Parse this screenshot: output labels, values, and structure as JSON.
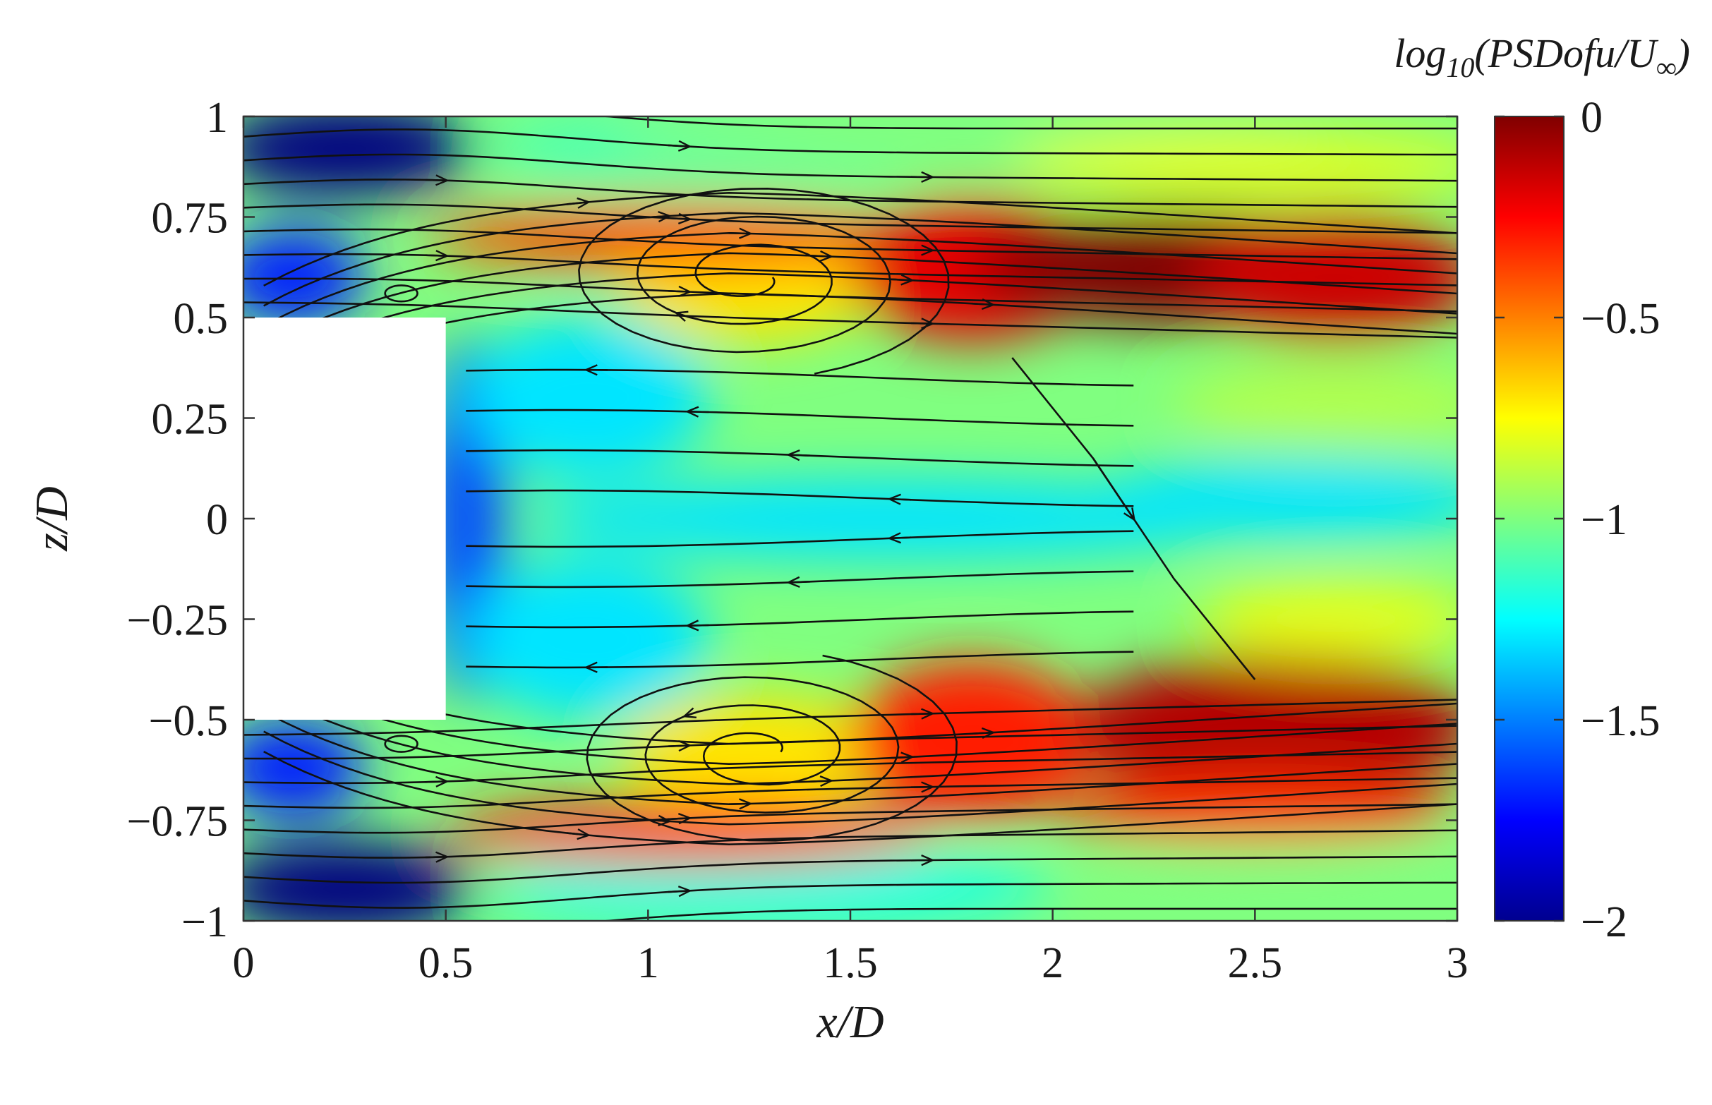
{
  "chart_data": {
    "type": "heatmap",
    "subtype": "contour with streamlines",
    "xlabel": "x/D",
    "ylabel": "z/D",
    "xlim": [
      0,
      3
    ],
    "ylim": [
      -1,
      1
    ],
    "xticks": [
      0,
      0.5,
      1,
      1.5,
      2,
      2.5,
      3
    ],
    "xticklabels": [
      "0",
      "0.5",
      "1",
      "1.5",
      "2",
      "2.5",
      "3"
    ],
    "yticks": [
      1,
      0.75,
      0.5,
      0.25,
      0,
      -0.25,
      -0.5,
      -0.75,
      -1
    ],
    "yticklabels": [
      "1",
      "0.75",
      "0.5",
      "0.25",
      "0",
      "−0.25",
      "−0.5",
      "−0.75",
      "−1"
    ],
    "colorbar": {
      "label": "log10(PSDofu/U∞)",
      "label_parts": {
        "pre": "log",
        "sub": "10",
        "post": "(PSDofu/U",
        "post_sub": "∞",
        "close": ")"
      },
      "range": [
        -2,
        0
      ],
      "ticks": [
        0,
        -0.5,
        -1,
        -1.5,
        -2
      ],
      "ticklabels": [
        "0",
        "−0.5",
        "−1",
        "−1.5",
        "−2"
      ],
      "colormap": "jet"
    },
    "body": {
      "x": [
        0,
        0.5
      ],
      "z": [
        -0.5,
        0.5
      ]
    },
    "features": [
      {
        "kind": "vortex",
        "x": 1.25,
        "z": 0.6
      },
      {
        "kind": "vortex",
        "x": 1.27,
        "z": -0.58
      },
      {
        "kind": "secondary-vortex",
        "x": 0.39,
        "z": 0.56
      },
      {
        "kind": "secondary-vortex",
        "x": 0.39,
        "z": -0.56
      },
      {
        "kind": "saddle-point",
        "x": 2.2,
        "z": 0.0
      }
    ],
    "field_levels": [
      {
        "region": "upper shear layer peak",
        "x": 2.3,
        "z": 0.62,
        "value": 0.0
      },
      {
        "region": "lower shear layer peak",
        "x": 2.6,
        "z": -0.55,
        "value": -0.1
      },
      {
        "region": "vortex cores",
        "x": 1.25,
        "z": 0.6,
        "value": -0.7
      },
      {
        "region": "centerline wake",
        "x": 1.5,
        "z": 0.0,
        "value": -1.2
      },
      {
        "region": "free stream",
        "x": 0.2,
        "z": 0.9,
        "value": -2.0
      }
    ]
  }
}
